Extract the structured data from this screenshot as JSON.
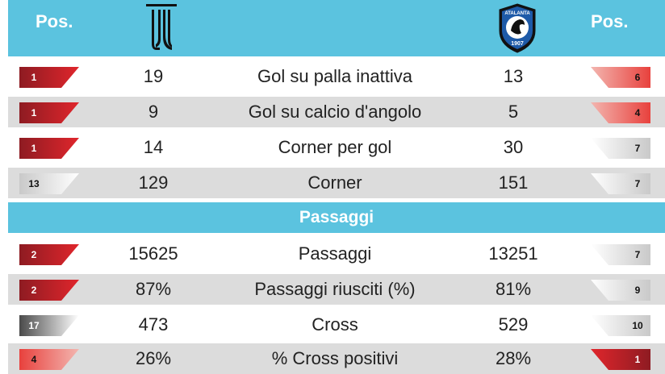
{
  "header": {
    "pos_left": "Pos.",
    "pos_right": "Pos.",
    "team_left_logo": "juventus-logo-icon",
    "team_right_logo": "atalanta-logo-icon",
    "atalanta_logo_text": "ATALANTA",
    "atalanta_logo_year": "1907",
    "color": "#5bc3df"
  },
  "rows_group1": [
    {
      "left_pos": "1",
      "left_style": "red",
      "left_value": "19",
      "label": "Gol su palla inattiva",
      "right_value": "13",
      "right_pos": "6",
      "right_style": "red-light",
      "shaded": false
    },
    {
      "left_pos": "1",
      "left_style": "red",
      "left_value": "9",
      "label": "Gol su calcio d'angolo",
      "right_value": "5",
      "right_pos": "4",
      "right_style": "red-light",
      "shaded": true
    },
    {
      "left_pos": "1",
      "left_style": "red",
      "left_value": "14",
      "label": "Corner per gol",
      "right_value": "30",
      "right_pos": "7",
      "right_style": "gray-light",
      "shaded": false
    },
    {
      "left_pos": "13",
      "left_style": "gray-light",
      "left_value": "129",
      "label": "Corner",
      "right_value": "151",
      "right_pos": "7",
      "right_style": "gray-light",
      "shaded": true
    }
  ],
  "section": {
    "title": "Passaggi"
  },
  "rows_group2": [
    {
      "left_pos": "2",
      "left_style": "red",
      "left_value": "15625",
      "label": "Passaggi",
      "right_value": "13251",
      "right_pos": "7",
      "right_style": "gray-light",
      "shaded": false
    },
    {
      "left_pos": "2",
      "left_style": "red",
      "left_value": "87%",
      "label": "Passaggi riusciti (%)",
      "right_value": "81%",
      "right_pos": "9",
      "right_style": "gray-light",
      "shaded": true
    },
    {
      "left_pos": "17",
      "left_style": "gray-dark",
      "left_value": "473",
      "label": "Cross",
      "right_value": "529",
      "right_pos": "10",
      "right_style": "gray-light",
      "shaded": false
    },
    {
      "left_pos": "4",
      "left_style": "red-light",
      "left_value": "26%",
      "label": "% Cross positivi",
      "right_value": "28%",
      "right_pos": "1",
      "right_style": "red",
      "shaded": true
    }
  ],
  "colors": {
    "red_dark": "#8e1b22",
    "red_bright": "#e0262c",
    "red_light": "#e8413d",
    "red_light_fade": "#f3b6b0",
    "gray_light": "#c9c9c9",
    "gray_dark": "#4a4a4a",
    "row_shade": "#dcdcdc"
  }
}
